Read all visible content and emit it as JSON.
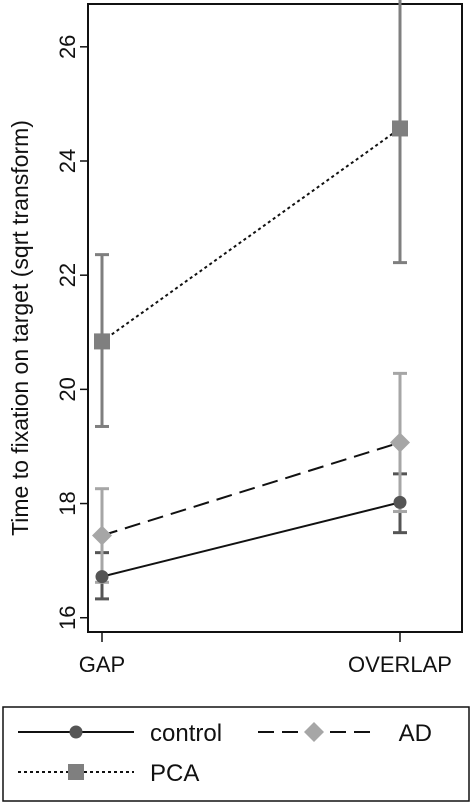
{
  "chart_data": {
    "type": "line",
    "title": "",
    "xlabel": "",
    "ylabel": "Time to fixation on target (sqrt transform)",
    "categories": [
      "GAP",
      "OVERLAP"
    ],
    "ylim": [
      15.75,
      26.75
    ],
    "yticks": [
      16,
      18,
      20,
      22,
      24,
      26
    ],
    "grid": false,
    "legend_position": "bottom",
    "series": [
      {
        "name": "control",
        "values": [
          16.72,
          18.02
        ],
        "error_low": [
          16.33,
          17.49
        ],
        "error_high": [
          17.14,
          18.52
        ],
        "marker": "circle",
        "line_style": "solid",
        "line_color": "#111111",
        "marker_color": "#555555",
        "error_color": "#555555"
      },
      {
        "name": "AD",
        "values": [
          17.44,
          19.07
        ],
        "error_low": [
          16.62,
          17.86
        ],
        "error_high": [
          18.26,
          20.28
        ],
        "marker": "diamond",
        "line_style": "dashed",
        "line_color": "#111111",
        "marker_color": "#a6a6a6",
        "error_color": "#a6a6a6"
      },
      {
        "name": "PCA",
        "values": [
          20.84,
          24.57
        ],
        "error_low": [
          19.35,
          22.22
        ],
        "error_high": [
          22.36,
          26.9
        ],
        "marker": "square",
        "line_style": "dotted",
        "line_color": "#111111",
        "marker_color": "#7f7f7f",
        "error_color": "#7f7f7f"
      }
    ]
  }
}
